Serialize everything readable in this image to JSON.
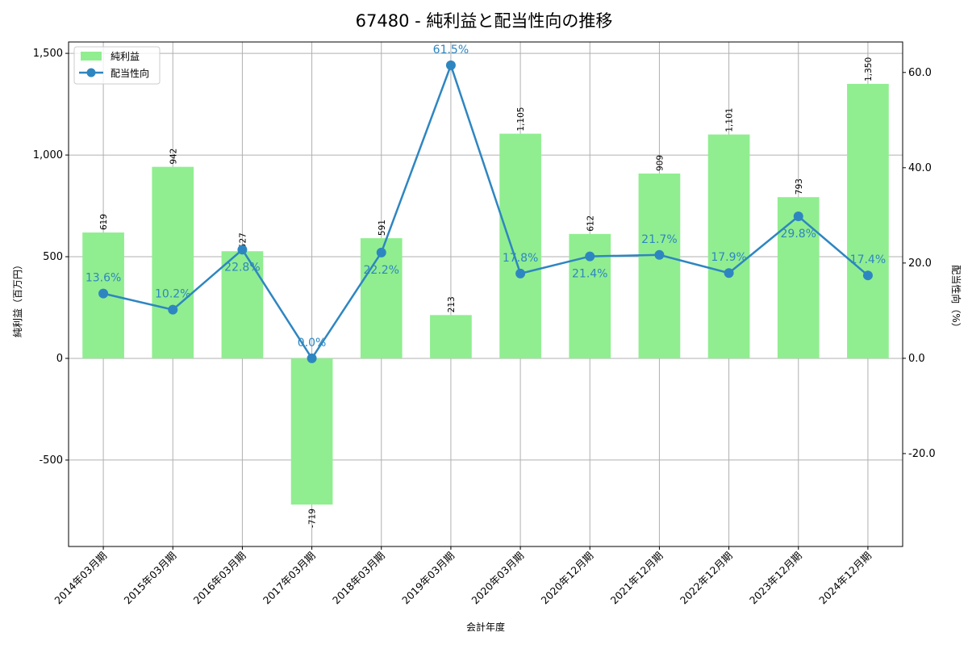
{
  "chart_data": {
    "type": "bar+line",
    "title": "67480 - 純利益と配当性向の推移",
    "xlabel": "会計年度",
    "ylabel_left": "純利益（百万円）",
    "ylabel_right": "配当性向（%）",
    "categories": [
      "2014年03月期",
      "2015年03月期",
      "2016年03月期",
      "2017年03月期",
      "2018年03月期",
      "2019年03月期",
      "2020年03月期",
      "2020年12月期",
      "2021年12月期",
      "2022年12月期",
      "2023年12月期",
      "2024年12月期"
    ],
    "series": [
      {
        "name": "純利益",
        "type": "bar",
        "axis": "left",
        "color": "#90ee90",
        "values": [
          619,
          942,
          527,
          -719,
          591,
          213,
          1105,
          612,
          909,
          1101,
          793,
          1350
        ],
        "labels": [
          "619",
          "942",
          "527",
          "-719",
          "591",
          "213",
          "1,105",
          "612",
          "909",
          "1,101",
          "793",
          "1,350"
        ]
      },
      {
        "name": "配当性向",
        "type": "line",
        "axis": "right",
        "color": "#2e86c1",
        "values": [
          13.6,
          10.2,
          22.8,
          0.0,
          22.2,
          61.5,
          17.8,
          21.4,
          21.7,
          17.9,
          29.8,
          17.4
        ],
        "labels": [
          "13.6%",
          "10.2%",
          "22.8%",
          "0.0%",
          "22.2%",
          "61.5%",
          "17.8%",
          "21.4%",
          "21.7%",
          "17.9%",
          "29.8%",
          "17.4%"
        ]
      }
    ],
    "ylim_left": [
      -925,
      1556
    ],
    "ylim_right": [
      -39.5,
      66.4
    ],
    "yticks_left": [
      {
        "v": -500,
        "label": "-500"
      },
      {
        "v": 0,
        "label": "0"
      },
      {
        "v": 500,
        "label": "500"
      },
      {
        "v": 1000,
        "label": "1,000"
      },
      {
        "v": 1500,
        "label": "1,500"
      }
    ],
    "yticks_right": [
      {
        "v": -20,
        "label": "-20.0"
      },
      {
        "v": 0,
        "label": "0.0"
      },
      {
        "v": 20,
        "label": "20.0"
      },
      {
        "v": 40,
        "label": "40.0"
      },
      {
        "v": 60,
        "label": "60.0"
      }
    ],
    "grid": true,
    "legend_position": "top-left"
  }
}
